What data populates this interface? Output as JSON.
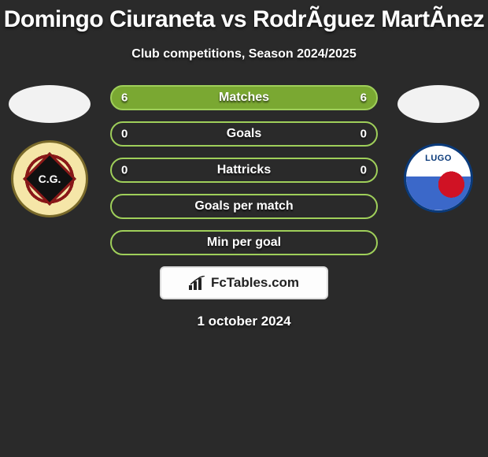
{
  "background_color": "#2a2a2a",
  "text_color": "#ffffff",
  "title": "Domingo Ciuraneta vs RodrÃ­guez MartÃ­nez",
  "title_fontsize": 30,
  "subtitle": "Club competitions, Season 2024/2025",
  "subtitle_fontsize": 16,
  "date": "1 october 2024",
  "attribution": "FcTables.com",
  "attribution_bg": "#fdfdfd",
  "attribution_border": "#dddddd",
  "attribution_text_color": "#222222",
  "player_photo_bg": "#f2f2f2",
  "left_badge": {
    "text": "C.G.",
    "ring_color": "#7a6a2a",
    "bg": "#f5e6a8",
    "stripe": "#8a1818",
    "shield": "#111111"
  },
  "right_badge": {
    "text": "LUGO",
    "border": "#0a3a7a",
    "top_bg": "#ffffff",
    "bottom_bg": "#3b68c9",
    "ball": "#d01224"
  },
  "stats": {
    "pill_height": 32,
    "pill_radius": 16,
    "gap": 14,
    "font_size": 16,
    "rows": [
      {
        "label": "Matches",
        "left": "6",
        "right": "6",
        "border": "#9fcf5a",
        "fill_left": "#7aa832",
        "fill_right": "#7aa832",
        "left_pct": 50,
        "right_pct": 50
      },
      {
        "label": "Goals",
        "left": "0",
        "right": "0",
        "border": "#9fcf5a",
        "fill_left": "#7aa832",
        "fill_right": "#7aa832",
        "left_pct": 0,
        "right_pct": 0
      },
      {
        "label": "Hattricks",
        "left": "0",
        "right": "0",
        "border": "#9fcf5a",
        "fill_left": "#7aa832",
        "fill_right": "#7aa832",
        "left_pct": 0,
        "right_pct": 0
      },
      {
        "label": "Goals per match",
        "left": "",
        "right": "",
        "border": "#9fcf5a",
        "fill_left": "#7aa832",
        "fill_right": "#7aa832",
        "left_pct": 0,
        "right_pct": 0
      },
      {
        "label": "Min per goal",
        "left": "",
        "right": "",
        "border": "#9fcf5a",
        "fill_left": "#7aa832",
        "fill_right": "#7aa832",
        "left_pct": 0,
        "right_pct": 0
      }
    ]
  }
}
